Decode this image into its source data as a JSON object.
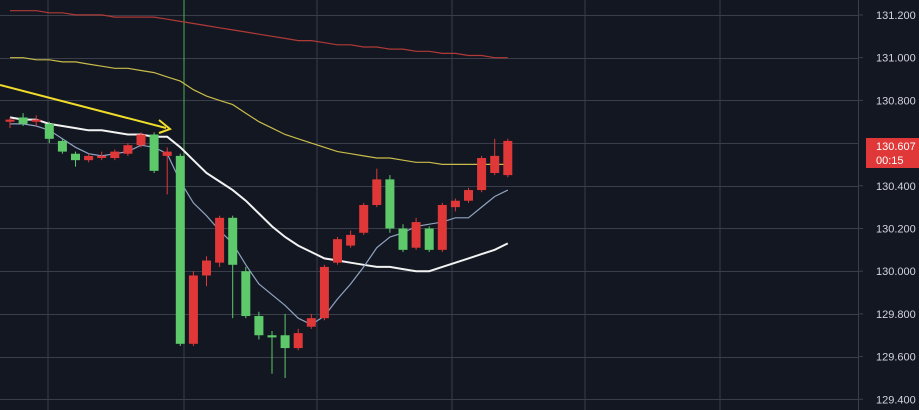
{
  "chart_data": {
    "type": "candlestick",
    "y_range": [
      129.35,
      131.27
    ],
    "y_ticks": [
      "131.200",
      "131.000",
      "130.800",
      "130.400",
      "130.200",
      "130.000",
      "129.800",
      "129.600",
      "129.400"
    ],
    "current_price": {
      "label": "130.607",
      "timer": "00:15",
      "color": "#e03838"
    },
    "colors": {
      "background": "#131722",
      "grid": "#3a3e4a",
      "up": "#e03838",
      "down": "#5ec96b",
      "ma_red": "#b03a36",
      "ma_yellow": "#c8bc4a",
      "ma_white": "#f2f2f2",
      "ma_blue": "#8fa3c0",
      "arrow": "#f0dc2a",
      "crosshair": "#4caf50"
    },
    "candles": [
      {
        "o": 130.7,
        "c": 130.71,
        "h": 130.72,
        "l": 130.67
      },
      {
        "o": 130.72,
        "c": 130.69,
        "h": 130.74,
        "l": 130.68
      },
      {
        "o": 130.7,
        "c": 130.71,
        "h": 130.73,
        "l": 130.68
      },
      {
        "o": 130.69,
        "c": 130.62,
        "h": 130.7,
        "l": 130.6
      },
      {
        "o": 130.61,
        "c": 130.56,
        "h": 130.62,
        "l": 130.55
      },
      {
        "o": 130.55,
        "c": 130.52,
        "h": 130.56,
        "l": 130.49
      },
      {
        "o": 130.52,
        "c": 130.54,
        "h": 130.55,
        "l": 130.51
      },
      {
        "o": 130.53,
        "c": 130.54,
        "h": 130.56,
        "l": 130.52
      },
      {
        "o": 130.53,
        "c": 130.56,
        "h": 130.57,
        "l": 130.52
      },
      {
        "o": 130.55,
        "c": 130.59,
        "h": 130.6,
        "l": 130.54
      },
      {
        "o": 130.59,
        "c": 130.64,
        "h": 130.65,
        "l": 130.58
      },
      {
        "o": 130.64,
        "c": 130.47,
        "h": 130.65,
        "l": 130.46
      },
      {
        "o": 130.54,
        "c": 130.56,
        "h": 130.58,
        "l": 130.36
      },
      {
        "o": 130.54,
        "c": 129.66,
        "h": 130.55,
        "l": 129.65
      },
      {
        "o": 129.66,
        "c": 129.98,
        "h": 130.0,
        "l": 129.65
      },
      {
        "o": 129.98,
        "c": 130.05,
        "h": 130.07,
        "l": 129.93
      },
      {
        "o": 130.04,
        "c": 130.25,
        "h": 130.26,
        "l": 130.02
      },
      {
        "o": 130.25,
        "c": 130.03,
        "h": 130.26,
        "l": 129.78
      },
      {
        "o": 130.0,
        "c": 129.79,
        "h": 130.02,
        "l": 129.78
      },
      {
        "o": 129.79,
        "c": 129.7,
        "h": 129.81,
        "l": 129.68
      },
      {
        "o": 129.7,
        "c": 129.69,
        "h": 129.72,
        "l": 129.52
      },
      {
        "o": 129.7,
        "c": 129.64,
        "h": 129.8,
        "l": 129.5
      },
      {
        "o": 129.64,
        "c": 129.71,
        "h": 129.73,
        "l": 129.63
      },
      {
        "o": 129.74,
        "c": 129.78,
        "h": 129.8,
        "l": 129.73
      },
      {
        "o": 129.78,
        "c": 130.02,
        "h": 130.03,
        "l": 129.77
      },
      {
        "o": 130.04,
        "c": 130.15,
        "h": 130.16,
        "l": 130.03
      },
      {
        "o": 130.12,
        "c": 130.17,
        "h": 130.19,
        "l": 130.11
      },
      {
        "o": 130.18,
        "c": 130.31,
        "h": 130.32,
        "l": 130.17
      },
      {
        "o": 130.31,
        "c": 130.43,
        "h": 130.48,
        "l": 130.3
      },
      {
        "o": 130.43,
        "c": 130.2,
        "h": 130.45,
        "l": 130.18
      },
      {
        "o": 130.2,
        "c": 130.1,
        "h": 130.22,
        "l": 130.09
      },
      {
        "o": 130.11,
        "c": 130.23,
        "h": 130.25,
        "l": 130.1
      },
      {
        "o": 130.2,
        "c": 130.1,
        "h": 130.21,
        "l": 130.09
      },
      {
        "o": 130.1,
        "c": 130.31,
        "h": 130.32,
        "l": 130.09
      },
      {
        "o": 130.3,
        "c": 130.33,
        "h": 130.34,
        "l": 130.28
      },
      {
        "o": 130.33,
        "c": 130.38,
        "h": 130.39,
        "l": 130.32
      },
      {
        "o": 130.38,
        "c": 130.53,
        "h": 130.54,
        "l": 130.37
      },
      {
        "o": 130.46,
        "c": 130.54,
        "h": 130.62,
        "l": 130.45
      },
      {
        "o": 130.45,
        "c": 130.61,
        "h": 130.62,
        "l": 130.44
      }
    ],
    "series": [
      {
        "key": "ma_red",
        "values": [
          131.22,
          131.22,
          131.22,
          131.21,
          131.21,
          131.2,
          131.2,
          131.2,
          131.19,
          131.19,
          131.19,
          131.19,
          131.18,
          131.17,
          131.16,
          131.15,
          131.14,
          131.13,
          131.12,
          131.11,
          131.1,
          131.09,
          131.08,
          131.08,
          131.07,
          131.06,
          131.06,
          131.05,
          131.05,
          131.04,
          131.04,
          131.03,
          131.03,
          131.02,
          131.02,
          131.01,
          131.01,
          131.0,
          131.0
        ]
      },
      {
        "key": "ma_yellow",
        "values": [
          131.0,
          131.0,
          130.99,
          130.99,
          130.98,
          130.98,
          130.97,
          130.96,
          130.95,
          130.95,
          130.94,
          130.93,
          130.91,
          130.89,
          130.85,
          130.82,
          130.8,
          130.78,
          130.74,
          130.7,
          130.67,
          130.64,
          130.62,
          130.6,
          130.58,
          130.56,
          130.55,
          130.54,
          130.53,
          130.53,
          130.52,
          130.51,
          130.51,
          130.5,
          130.5,
          130.5,
          130.5,
          130.5,
          130.5
        ]
      },
      {
        "key": "ma_white",
        "values": [
          130.72,
          130.71,
          130.71,
          130.69,
          130.68,
          130.67,
          130.66,
          130.66,
          130.65,
          130.64,
          130.64,
          130.63,
          130.63,
          130.58,
          130.52,
          130.46,
          130.42,
          130.38,
          130.33,
          130.27,
          130.21,
          130.16,
          130.12,
          130.09,
          130.06,
          130.05,
          130.04,
          130.03,
          130.02,
          130.02,
          130.01,
          130.0,
          130.0,
          130.02,
          130.04,
          130.06,
          130.08,
          130.1,
          130.13
        ]
      },
      {
        "key": "ma_blue",
        "values": [
          130.69,
          130.69,
          130.68,
          130.66,
          130.62,
          130.58,
          130.55,
          130.54,
          130.55,
          130.56,
          130.59,
          130.58,
          130.55,
          130.42,
          130.32,
          130.26,
          130.19,
          130.13,
          130.03,
          129.94,
          129.89,
          129.84,
          129.78,
          129.75,
          129.79,
          129.87,
          129.94,
          130.02,
          130.11,
          130.16,
          130.18,
          130.21,
          130.22,
          130.23,
          130.25,
          130.25,
          130.3,
          130.35,
          130.38
        ]
      }
    ]
  }
}
